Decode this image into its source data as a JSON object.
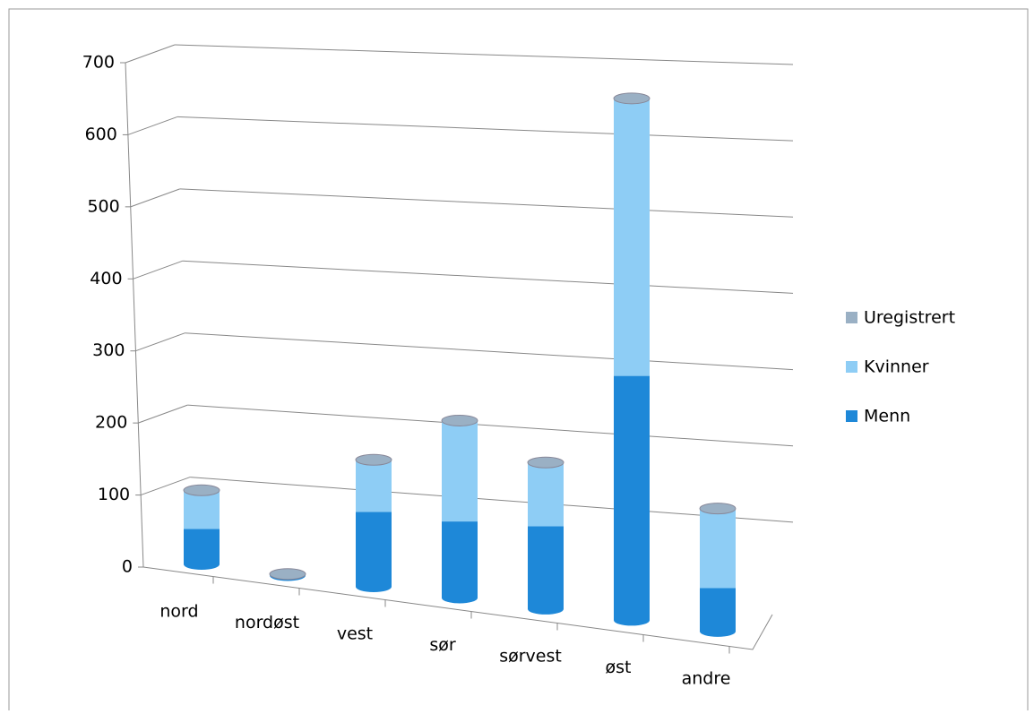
{
  "chart_data": {
    "type": "cylinder3d",
    "categories": [
      "nord",
      "nordøst",
      "vest",
      "sør",
      "sørvest",
      "øst",
      "andre"
    ],
    "series": [
      {
        "name": "Menn",
        "color": "#1e88d8",
        "values": [
          45,
          0,
          95,
          97,
          105,
          310,
          55
        ]
      },
      {
        "name": "Kvinner",
        "color": "#8ecdf5",
        "values": [
          48,
          1,
          65,
          127,
          80,
          350,
          100
        ]
      },
      {
        "name": "Uregistrert",
        "color": "#9ab0c4",
        "values": [
          1,
          1,
          1,
          1,
          1,
          2,
          1
        ]
      }
    ],
    "ylim": [
      0,
      700
    ],
    "yticks": [
      0,
      100,
      200,
      300,
      400,
      500,
      600,
      700
    ],
    "grid": true,
    "legend": "right"
  }
}
